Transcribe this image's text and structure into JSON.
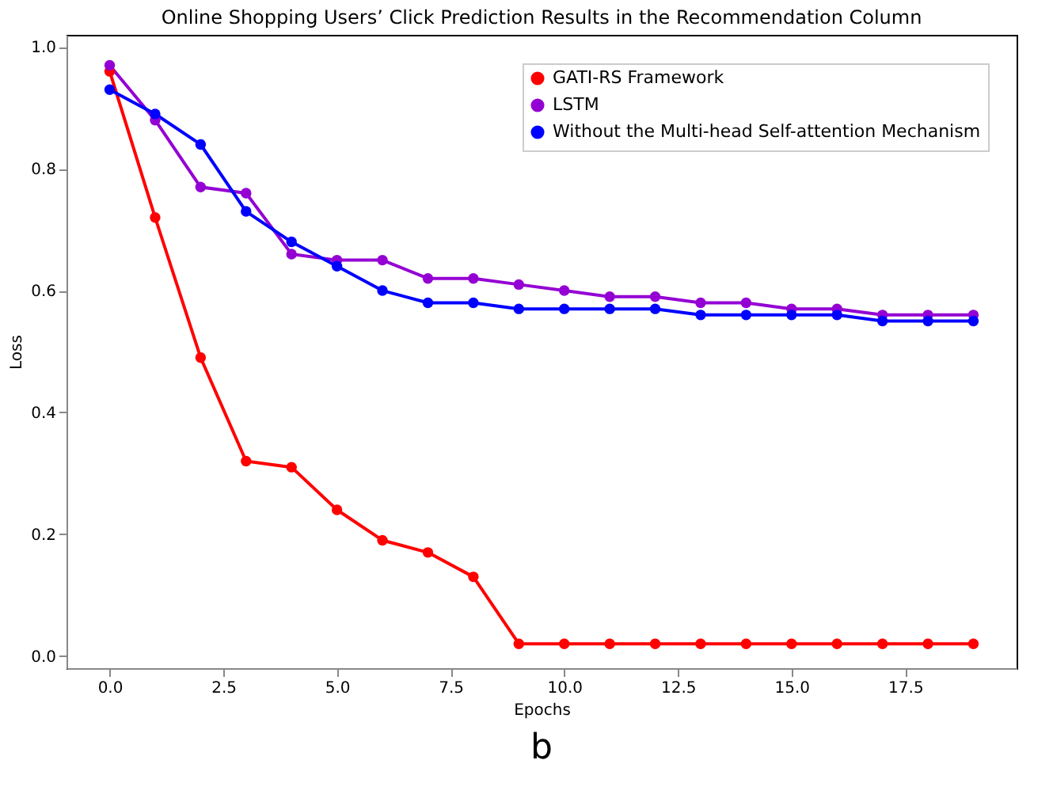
{
  "chart_data": {
    "type": "line",
    "title": "Online Shopping Users’ Click Prediction Results in the Recommendation Column",
    "xlabel": "Epochs",
    "ylabel": "Loss",
    "x": [
      0,
      1,
      2,
      3,
      4,
      5,
      6,
      7,
      8,
      9,
      10,
      11,
      12,
      13,
      14,
      15,
      16,
      17,
      18,
      19
    ],
    "series": [
      {
        "name": "GATI-RS Framework",
        "color": "#ff0000",
        "values": [
          0.96,
          0.72,
          0.49,
          0.32,
          0.31,
          0.24,
          0.19,
          0.17,
          0.13,
          0.02,
          0.02,
          0.02,
          0.02,
          0.02,
          0.02,
          0.02,
          0.02,
          0.02,
          0.02,
          0.02
        ]
      },
      {
        "name": "LSTM",
        "color": "#9400d3",
        "values": [
          0.97,
          0.88,
          0.77,
          0.76,
          0.66,
          0.65,
          0.65,
          0.62,
          0.62,
          0.61,
          0.6,
          0.59,
          0.59,
          0.58,
          0.58,
          0.57,
          0.57,
          0.56,
          0.56,
          0.56
        ]
      },
      {
        "name": "Without the Multi-head Self-attention Mechanism",
        "color": "#0000ff",
        "values": [
          0.93,
          0.89,
          0.84,
          0.73,
          0.68,
          0.64,
          0.6,
          0.58,
          0.58,
          0.57,
          0.57,
          0.57,
          0.57,
          0.56,
          0.56,
          0.56,
          0.56,
          0.55,
          0.55,
          0.55
        ]
      }
    ],
    "xlim": [
      -0.95,
      19.95
    ],
    "xticks": [
      {
        "value": 0,
        "label": "0.0"
      },
      2.5,
      {
        "value": 5,
        "label": "5.0"
      },
      {
        "value": 7.5,
        "label": "7.5"
      },
      {
        "value": 10,
        "label": "10.0"
      },
      12.5,
      {
        "value": 15,
        "label": "15.0"
      },
      17.5
    ],
    "ylim": [
      -0.02,
      1.02
    ],
    "yticks": [
      {
        "value": 0,
        "label": "0.0"
      },
      0.2,
      0.4,
      0.6,
      0.8,
      {
        "value": 1,
        "label": "1.0"
      }
    ],
    "grid": false,
    "legend": "top right",
    "marker": "circle",
    "line_style": "solid",
    "annotations": [
      "b"
    ]
  }
}
